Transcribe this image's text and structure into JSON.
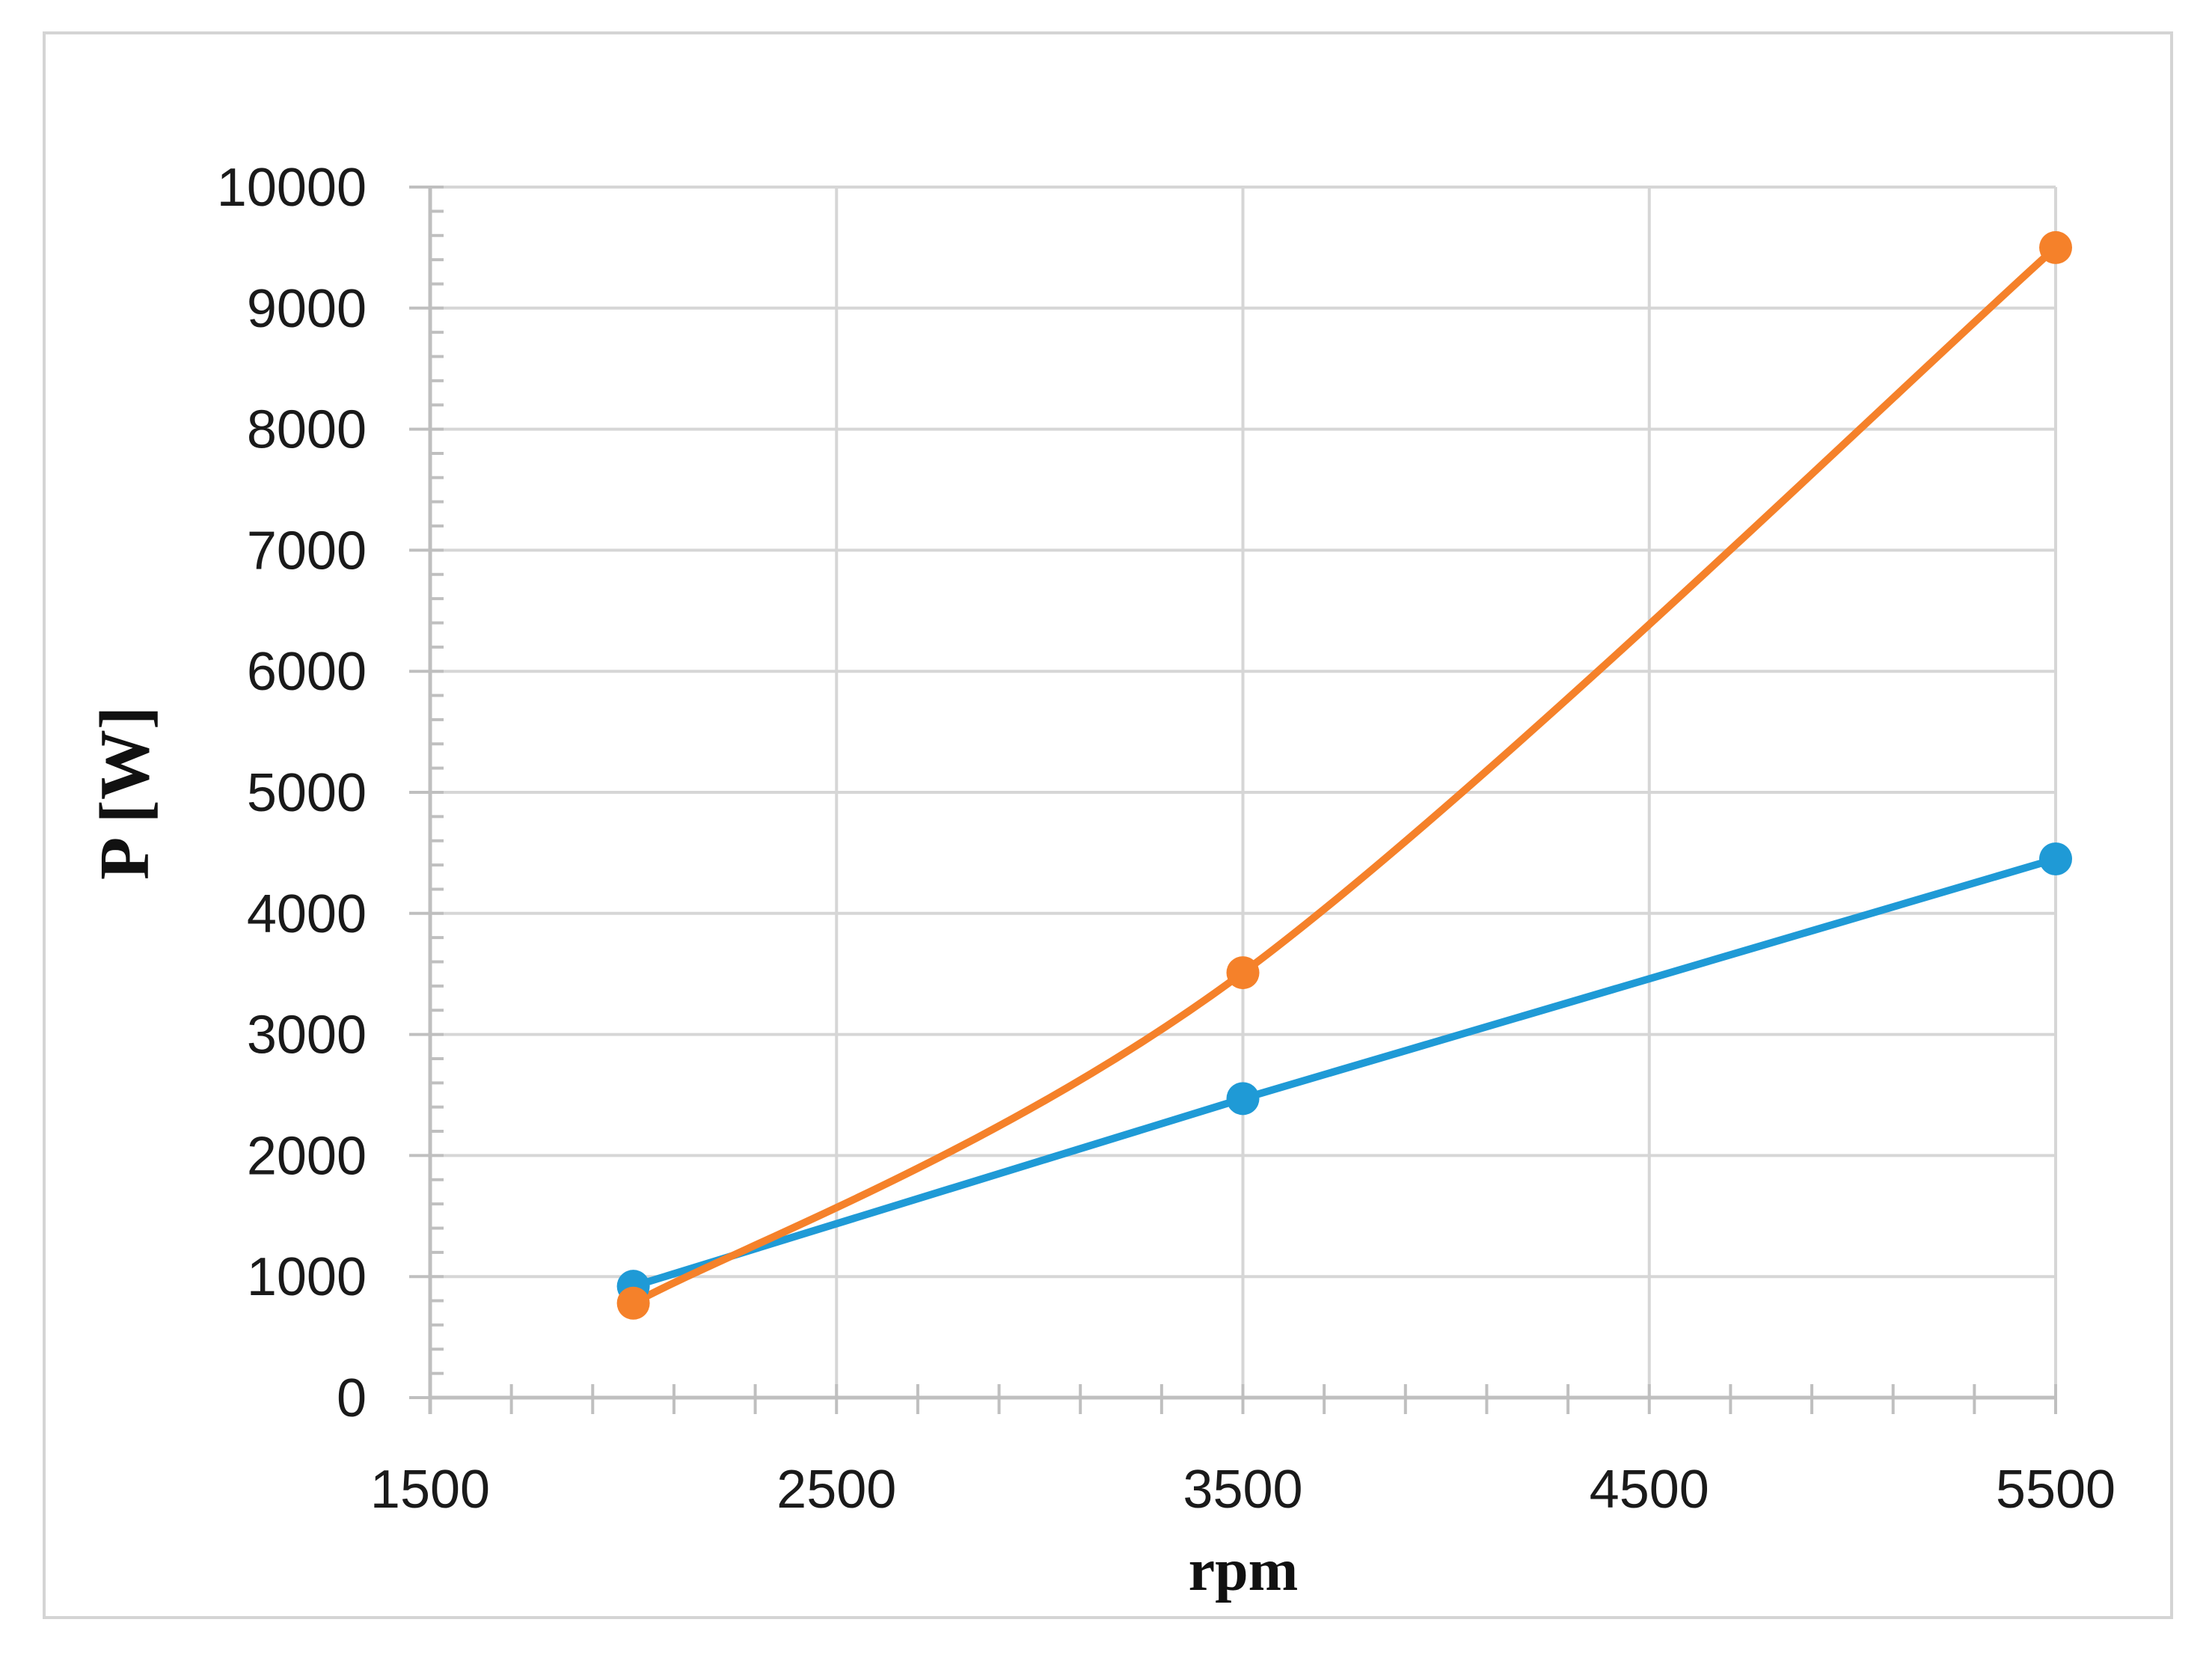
{
  "chart_data": {
    "type": "line",
    "title": "",
    "xlabel": "rpm",
    "ylabel": "P [W]",
    "xlim": [
      1500,
      5500
    ],
    "ylim": [
      0,
      10000
    ],
    "x_ticks": [
      "1500",
      "2500",
      "3500",
      "4500",
      "5500"
    ],
    "y_ticks": [
      "0",
      "1000",
      "2000",
      "3000",
      "4000",
      "5000",
      "6000",
      "7000",
      "8000",
      "9000",
      "10000"
    ],
    "grid": true,
    "legend": "none",
    "series": [
      {
        "color": "#1f9ad6",
        "x": [
          2000,
          3500,
          5500
        ],
        "y": [
          920,
          2470,
          4450
        ],
        "smooth": false
      },
      {
        "color": "#f5812a",
        "x": [
          2000,
          3500,
          5500
        ],
        "y": [
          780,
          3510,
          9500
        ],
        "smooth": true
      }
    ]
  }
}
